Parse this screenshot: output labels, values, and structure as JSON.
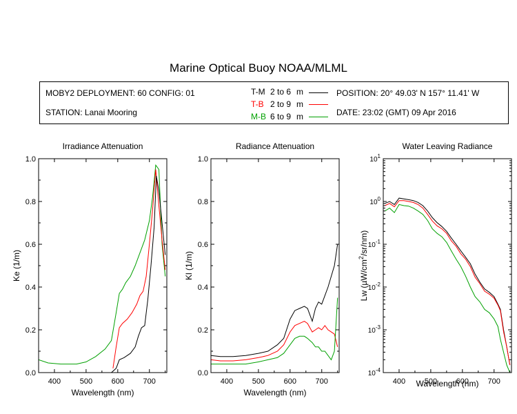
{
  "title": "Marine Optical Buoy NOAA/MLML",
  "info": {
    "deployment": "MOBY2 DEPLOYMENT: 60 CONFIG: 01",
    "station": "STATION: Lanai Mooring",
    "position": "POSITION: 20° 49.03' N   157° 11.41' W",
    "date": "DATE: 23:02 (GMT) 09 Apr 2016",
    "legend": [
      {
        "code": "T-M",
        "range": "2 to 6",
        "unit": "m",
        "color": "#000000"
      },
      {
        "code": "T-B",
        "range": "2 to 9",
        "unit": "m",
        "color": "#ff0000"
      },
      {
        "code": "M-B",
        "range": "6 to 9",
        "unit": "m",
        "color": "#00a000"
      }
    ]
  },
  "chart_data": [
    {
      "type": "line",
      "title": "Irradiance Attenuation",
      "xlabel": "Wavelength (nm)",
      "ylabel": "Ke  (1/m)",
      "xlim": [
        350,
        755
      ],
      "ylim": [
        0,
        1.0
      ],
      "xticks": [
        "400",
        "500",
        "600",
        "700"
      ],
      "yticks": [
        "0.0",
        "0.2",
        "0.4",
        "0.6",
        "0.8",
        "1.0"
      ],
      "series": [
        {
          "color": "#00a000",
          "x": [
            350,
            380,
            420,
            470,
            500,
            530,
            560,
            580,
            595,
            605,
            615,
            625,
            640,
            655,
            670,
            685,
            700,
            710,
            720,
            730,
            740,
            750
          ],
          "y": [
            0.06,
            0.045,
            0.04,
            0.04,
            0.05,
            0.075,
            0.11,
            0.15,
            0.28,
            0.37,
            0.39,
            0.42,
            0.45,
            0.5,
            0.56,
            0.62,
            0.71,
            0.82,
            0.97,
            0.95,
            0.6,
            0.45
          ]
        },
        {
          "color": "#ff0000",
          "x": [
            585,
            595,
            605,
            615,
            630,
            645,
            660,
            670,
            680,
            690,
            700,
            710,
            720,
            730,
            740,
            750
          ],
          "y": [
            0.02,
            0.12,
            0.21,
            0.23,
            0.25,
            0.28,
            0.32,
            0.36,
            0.38,
            0.45,
            0.6,
            0.76,
            0.95,
            0.78,
            0.62,
            0.48
          ]
        },
        {
          "color": "#000000",
          "x": [
            580,
            595,
            605,
            620,
            640,
            655,
            665,
            675,
            685,
            695,
            705,
            715,
            722,
            730,
            740,
            750
          ],
          "y": [
            0.0,
            0.02,
            0.06,
            0.07,
            0.09,
            0.12,
            0.17,
            0.21,
            0.22,
            0.34,
            0.5,
            0.68,
            0.92,
            0.85,
            0.7,
            0.55
          ]
        }
      ]
    },
    {
      "type": "line",
      "title": "Radiance Attenuation",
      "xlabel": "Wavelength (nm)",
      "ylabel": "Kl  (1/m)",
      "xlim": [
        350,
        755
      ],
      "ylim": [
        0,
        1.0
      ],
      "xticks": [
        "400",
        "500",
        "600",
        "700"
      ],
      "yticks": [
        "0.0",
        "0.2",
        "0.4",
        "0.6",
        "0.8",
        "1.0"
      ],
      "series": [
        {
          "color": "#000000",
          "x": [
            350,
            380,
            420,
            460,
            500,
            530,
            560,
            580,
            600,
            615,
            630,
            645,
            655,
            670,
            680,
            690,
            700,
            710,
            720,
            730,
            740,
            750
          ],
          "y": [
            0.08,
            0.075,
            0.075,
            0.08,
            0.09,
            0.1,
            0.13,
            0.16,
            0.25,
            0.29,
            0.3,
            0.31,
            0.3,
            0.24,
            0.3,
            0.33,
            0.32,
            0.36,
            0.4,
            0.45,
            0.5,
            0.6
          ]
        },
        {
          "color": "#ff0000",
          "x": [
            350,
            380,
            420,
            460,
            500,
            530,
            560,
            580,
            600,
            615,
            630,
            645,
            655,
            670,
            680,
            690,
            700,
            710,
            720,
            730,
            740,
            750
          ],
          "y": [
            0.06,
            0.055,
            0.055,
            0.06,
            0.07,
            0.08,
            0.1,
            0.13,
            0.19,
            0.22,
            0.23,
            0.24,
            0.23,
            0.19,
            0.2,
            0.21,
            0.2,
            0.22,
            0.2,
            0.19,
            0.18,
            0.12
          ]
        },
        {
          "color": "#00a000",
          "x": [
            350,
            380,
            420,
            460,
            500,
            530,
            560,
            580,
            600,
            615,
            630,
            645,
            655,
            670,
            680,
            690,
            700,
            710,
            720,
            730,
            740,
            750
          ],
          "y": [
            0.04,
            0.04,
            0.04,
            0.04,
            0.05,
            0.06,
            0.07,
            0.09,
            0.13,
            0.16,
            0.17,
            0.17,
            0.16,
            0.14,
            0.12,
            0.12,
            0.1,
            0.1,
            0.08,
            0.06,
            0.1,
            0.35
          ]
        }
      ]
    },
    {
      "type": "line",
      "title": "Water Leaving Radiance",
      "xlabel": "Wavelength (nm)",
      "ylabel": "Lw  (µW/cm²/sr/nm)",
      "ylabel_parts": {
        "pre": "Lw  (",
        "mu": "µ",
        "mid": "W/cm",
        "sup": "2",
        "post": "/sr/nm)"
      },
      "xlim": [
        350,
        755
      ],
      "ylim": [
        0.0001,
        10
      ],
      "yscale": "log",
      "xticks": [
        "400",
        "500",
        "600",
        "700"
      ],
      "yticks": [
        {
          "base": "10",
          "exp": "1"
        },
        {
          "base": "10",
          "exp": "0"
        },
        {
          "base": "10",
          "exp": "-1"
        },
        {
          "base": "10",
          "exp": "-2"
        },
        {
          "base": "10",
          "exp": "-3"
        },
        {
          "base": "10",
          "exp": "-4"
        }
      ],
      "series": [
        {
          "color": "#000000",
          "x": [
            355,
            370,
            385,
            400,
            415,
            430,
            445,
            460,
            475,
            490,
            505,
            520,
            535,
            550,
            565,
            580,
            595,
            610,
            625,
            640,
            655,
            670,
            685,
            700,
            712,
            720,
            730,
            740,
            750
          ],
          "y": [
            0.9,
            1.0,
            0.85,
            1.2,
            1.15,
            1.1,
            1.05,
            0.95,
            0.8,
            0.6,
            0.42,
            0.32,
            0.26,
            0.2,
            0.14,
            0.1,
            0.07,
            0.05,
            0.035,
            0.02,
            0.013,
            0.009,
            0.0075,
            0.006,
            0.004,
            0.003,
            0.001,
            0.0004,
            0.00015
          ]
        },
        {
          "color": "#ff0000",
          "x": [
            355,
            370,
            385,
            400,
            415,
            430,
            445,
            460,
            475,
            490,
            505,
            520,
            535,
            550,
            565,
            580,
            595,
            610,
            625,
            640,
            655,
            670,
            685,
            700,
            712,
            720,
            730,
            740,
            750
          ],
          "y": [
            0.8,
            0.9,
            0.75,
            1.05,
            1.05,
            1.0,
            0.95,
            0.85,
            0.7,
            0.5,
            0.35,
            0.27,
            0.23,
            0.18,
            0.12,
            0.09,
            0.06,
            0.045,
            0.03,
            0.017,
            0.012,
            0.008,
            0.0068,
            0.0055,
            0.0038,
            0.0028,
            0.0009,
            0.0004,
            0.00015
          ]
        },
        {
          "color": "#00a000",
          "x": [
            355,
            370,
            385,
            400,
            415,
            430,
            445,
            460,
            475,
            490,
            505,
            520,
            535,
            550,
            565,
            580,
            595,
            610,
            625,
            640,
            655,
            670,
            685,
            700,
            712,
            720,
            730,
            740,
            750
          ],
          "y": [
            0.6,
            0.7,
            0.55,
            0.85,
            0.8,
            0.78,
            0.7,
            0.6,
            0.5,
            0.36,
            0.23,
            0.18,
            0.15,
            0.11,
            0.07,
            0.045,
            0.03,
            0.018,
            0.01,
            0.006,
            0.0045,
            0.003,
            0.0025,
            0.0018,
            0.0012,
            0.0006,
            0.0003,
            0.00015,
            0.0001
          ]
        }
      ]
    }
  ]
}
